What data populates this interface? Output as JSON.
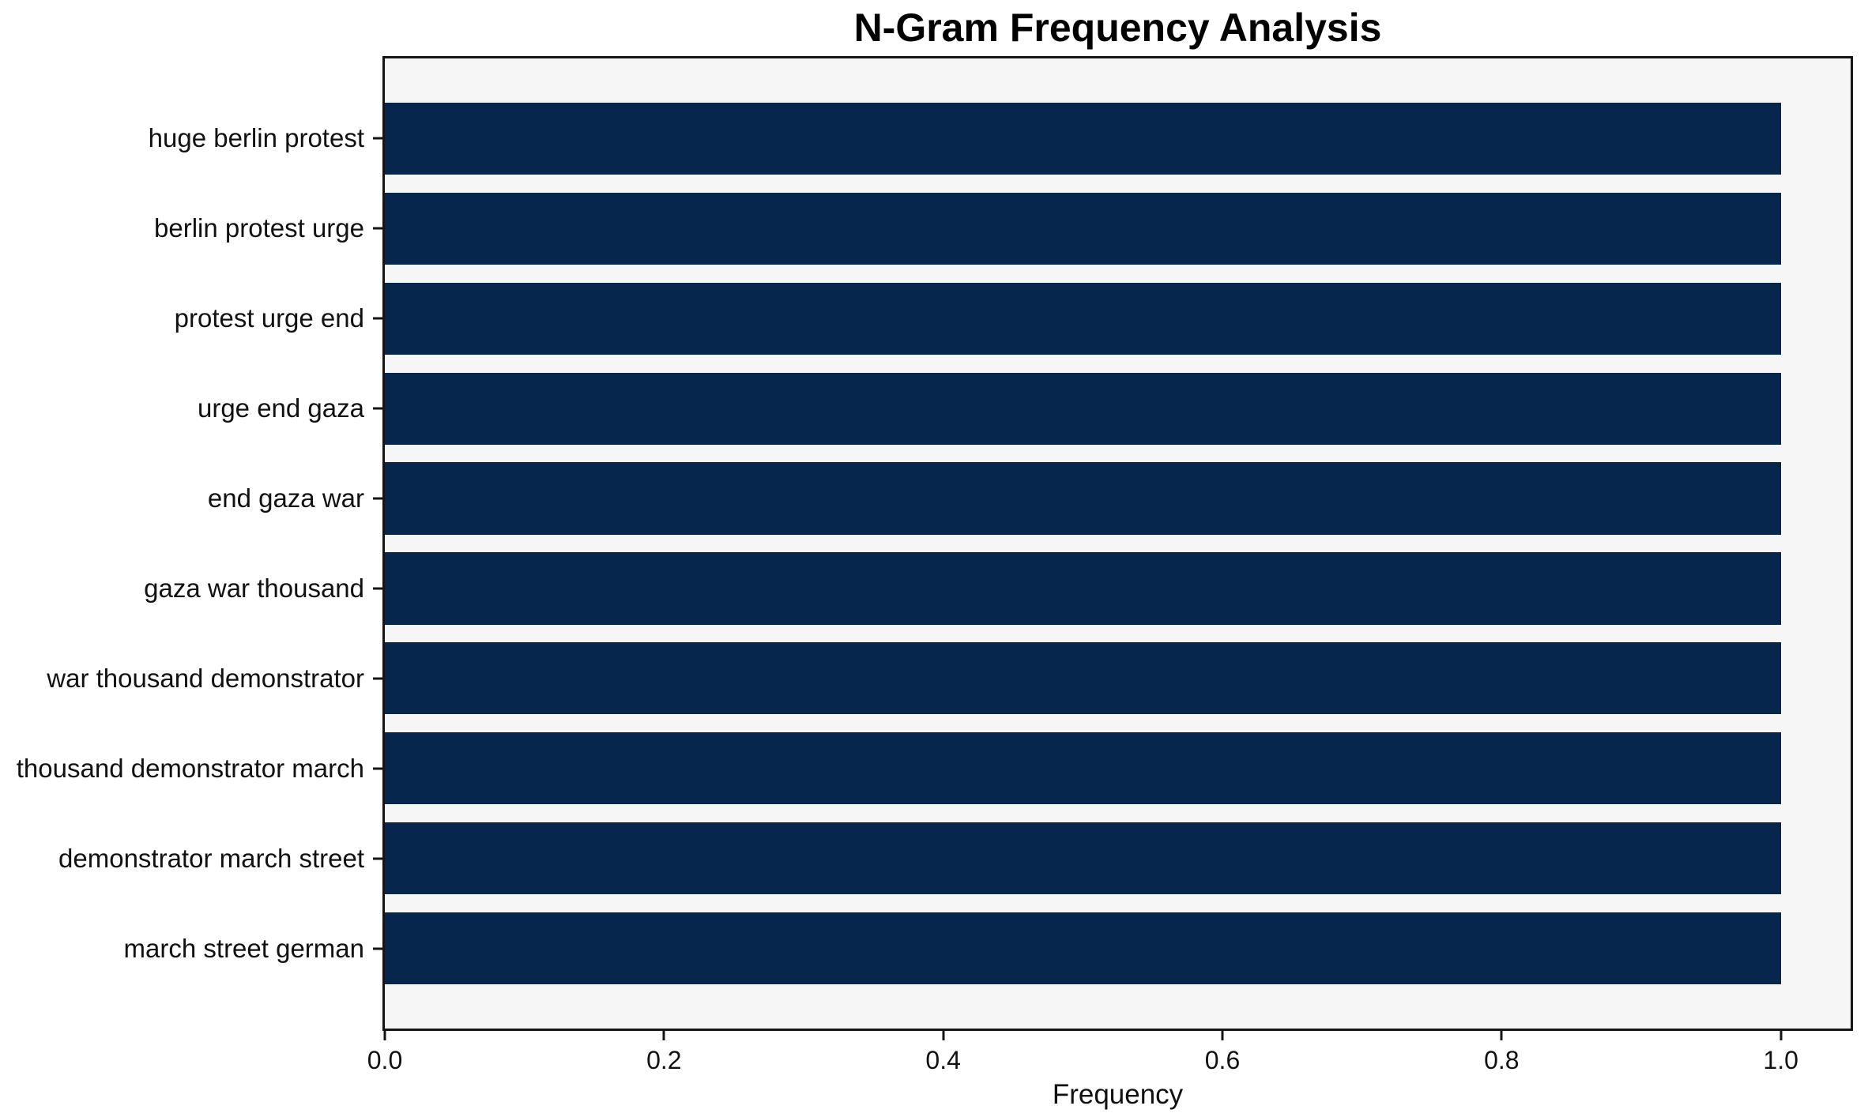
{
  "chart_data": {
    "type": "bar",
    "orientation": "horizontal",
    "title": "N-Gram Frequency Analysis",
    "xlabel": "Frequency",
    "ylabel": "",
    "categories": [
      "huge berlin protest",
      "berlin protest urge",
      "protest urge end",
      "urge end gaza",
      "end gaza war",
      "gaza war thousand",
      "war thousand demonstrator",
      "thousand demonstrator march",
      "demonstrator march street",
      "march street german"
    ],
    "values": [
      1.0,
      1.0,
      1.0,
      1.0,
      1.0,
      1.0,
      1.0,
      1.0,
      1.0,
      1.0
    ],
    "xlim": [
      0,
      1.05
    ],
    "xticks": [
      0.0,
      0.2,
      0.4,
      0.6,
      0.8,
      1.0
    ],
    "xtick_labels": [
      "0.0",
      "0.2",
      "0.4",
      "0.6",
      "0.8",
      "1.0"
    ],
    "bar_color": "#06264e",
    "plot_background": "#f6f6f6",
    "figure_background": "#ffffff",
    "spine_color": "#151515",
    "grid": false,
    "legend": null,
    "bar_height_fraction": 0.8,
    "y_axis_margin_units": 0.89
  }
}
